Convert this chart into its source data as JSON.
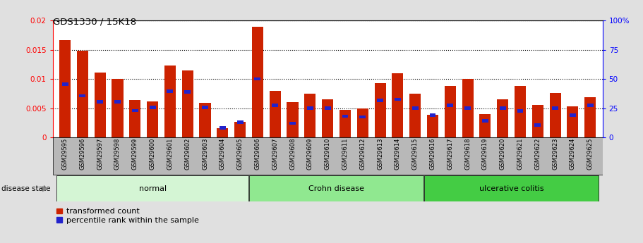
{
  "title": "GDS1330 / 15K18",
  "samples": [
    "GSM29595",
    "GSM29596",
    "GSM29597",
    "GSM29598",
    "GSM29599",
    "GSM29600",
    "GSM29601",
    "GSM29602",
    "GSM29603",
    "GSM29604",
    "GSM29605",
    "GSM29606",
    "GSM29607",
    "GSM29608",
    "GSM29609",
    "GSM29610",
    "GSM29611",
    "GSM29612",
    "GSM29613",
    "GSM29614",
    "GSM29615",
    "GSM29616",
    "GSM29617",
    "GSM29618",
    "GSM29619",
    "GSM29620",
    "GSM29621",
    "GSM29622",
    "GSM29623",
    "GSM29624",
    "GSM29625"
  ],
  "red_values": [
    0.01665,
    0.0149,
    0.01105,
    0.01,
    0.0064,
    0.00615,
    0.0123,
    0.0115,
    0.0059,
    0.00155,
    0.0027,
    0.0189,
    0.008,
    0.006,
    0.00745,
    0.0065,
    0.0047,
    0.0049,
    0.0093,
    0.011,
    0.0075,
    0.0038,
    0.0088,
    0.01,
    0.00395,
    0.0065,
    0.00875,
    0.0055,
    0.0076,
    0.0053,
    0.0069
  ],
  "blue_values": [
    0.0091,
    0.0071,
    0.0061,
    0.0061,
    0.0046,
    0.0051,
    0.0079,
    0.0078,
    0.0051,
    0.0016,
    0.0026,
    0.01,
    0.0055,
    0.0024,
    0.005,
    0.005,
    0.0036,
    0.0035,
    0.0063,
    0.0065,
    0.005,
    0.0038,
    0.0055,
    0.005,
    0.0028,
    0.005,
    0.0045,
    0.0021,
    0.005,
    0.0038,
    0.0055
  ],
  "groups": [
    {
      "label": "normal",
      "start": 0,
      "end": 10,
      "color": "#d4f5d4"
    },
    {
      "label": "Crohn disease",
      "start": 11,
      "end": 20,
      "color": "#90e890"
    },
    {
      "label": "ulcerative colitis",
      "start": 21,
      "end": 30,
      "color": "#44cc44"
    }
  ],
  "ylim_left": [
    0,
    0.02
  ],
  "ylim_right": [
    0,
    100
  ],
  "yticks_left": [
    0,
    0.005,
    0.01,
    0.015,
    0.02
  ],
  "yticks_right": [
    0,
    25,
    50,
    75,
    100
  ],
  "bar_color": "#cc2200",
  "blue_color": "#2222cc",
  "bg_color": "#e0e0e0",
  "plot_bg": "#ffffff",
  "tick_bg": "#c0c0c0",
  "legend_items": [
    "transformed count",
    "percentile rank within the sample"
  ],
  "group_separator_color": "#000000",
  "grid_color": "#000000"
}
